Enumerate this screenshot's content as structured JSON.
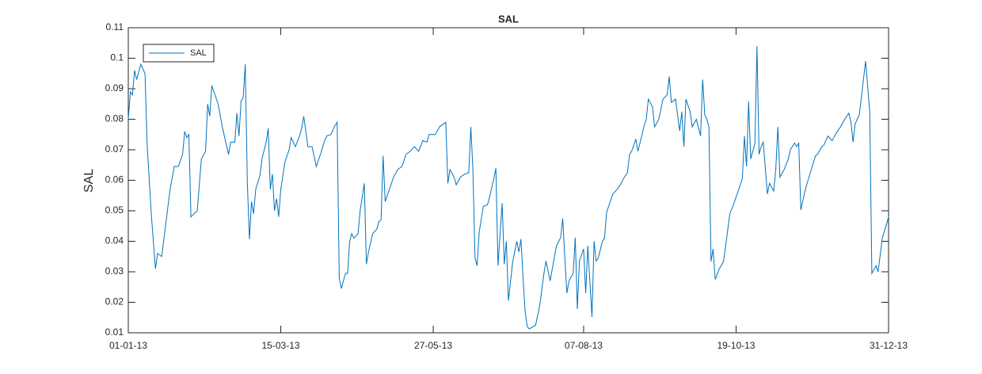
{
  "chart_data": {
    "type": "line",
    "title": "SAL",
    "y_label": "SAL",
    "x": [
      "01-01-13",
      "02-01-13",
      "03-01-13",
      "04-01-13",
      "05-01-13",
      "07-01-13",
      "09-01-13",
      "10-01-13",
      "12-01-13",
      "14-01-13",
      "15-01-13",
      "17-01-13",
      "19-01-13",
      "21-01-13",
      "23-01-13",
      "25-01-13",
      "27-01-13",
      "28-01-13",
      "29-01-13",
      "30-01-13",
      "31-01-13",
      "03-02-13",
      "05-02-13",
      "07-02-13",
      "08-02-13",
      "09-02-13",
      "10-02-13",
      "13-02-13",
      "15-02-13",
      "18-02-13",
      "19-02-13",
      "21-02-13",
      "22-02-13",
      "23-02-13",
      "24-02-13",
      "25-02-13",
      "26-02-13",
      "27-02-13",
      "28-02-13",
      "01-03-13",
      "02-03-13",
      "03-03-13",
      "05-03-13",
      "06-03-13",
      "08-03-13",
      "09-03-13",
      "10-03-13",
      "11-03-13",
      "12-03-13",
      "13-03-13",
      "14-03-13",
      "15-03-13",
      "17-03-13",
      "19-03-13",
      "20-03-13",
      "22-03-13",
      "24-03-13",
      "25-03-13",
      "26-03-13",
      "28-03-13",
      "30-03-13",
      "01-04-13",
      "03-04-13",
      "05-04-13",
      "06-04-13",
      "08-04-13",
      "10-04-13",
      "11-04-13",
      "12-04-13",
      "13-04-13",
      "15-04-13",
      "16-04-13",
      "17-04-13",
      "18-04-13",
      "19-04-13",
      "21-04-13",
      "22-04-13",
      "24-04-13",
      "25-04-13",
      "26-04-13",
      "28-04-13",
      "30-04-13",
      "01-05-13",
      "02-05-13",
      "03-05-13",
      "04-05-13",
      "06-05-13",
      "08-05-13",
      "10-05-13",
      "12-05-13",
      "14-05-13",
      "16-05-13",
      "18-05-13",
      "20-05-13",
      "22-05-13",
      "24-05-13",
      "25-05-13",
      "28-05-13",
      "30-05-13",
      "31-05-13",
      "02-06-13",
      "03-06-13",
      "04-06-13",
      "06-06-13",
      "07-06-13",
      "09-06-13",
      "11-06-13",
      "13-06-13",
      "14-06-13",
      "15-06-13",
      "16-06-13",
      "17-06-13",
      "18-06-13",
      "20-06-13",
      "22-06-13",
      "23-06-13",
      "25-06-13",
      "26-06-13",
      "27-06-13",
      "29-06-13",
      "30-06-13",
      "01-07-13",
      "02-07-13",
      "04-07-13",
      "06-07-13",
      "07-07-13",
      "08-07-13",
      "09-07-13",
      "10-07-13",
      "11-07-13",
      "12-07-13",
      "15-07-13",
      "17-07-13",
      "19-07-13",
      "20-07-13",
      "22-07-13",
      "23-07-13",
      "25-07-13",
      "27-07-13",
      "28-07-13",
      "29-07-13",
      "30-07-13",
      "31-07-13",
      "02-08-13",
      "03-08-13",
      "04-08-13",
      "05-08-13",
      "07-08-13",
      "08-08-13",
      "09-08-13",
      "11-08-13",
      "12-08-13",
      "13-08-13",
      "14-08-13",
      "16-08-13",
      "17-08-13",
      "18-08-13",
      "19-08-13",
      "21-08-13",
      "23-08-13",
      "25-08-13",
      "26-08-13",
      "28-08-13",
      "29-08-13",
      "30-08-13",
      "01-09-13",
      "02-09-13",
      "04-09-13",
      "05-09-13",
      "06-09-13",
      "07-09-13",
      "09-09-13",
      "10-09-13",
      "12-09-13",
      "14-09-13",
      "16-09-13",
      "17-09-13",
      "18-09-13",
      "20-09-13",
      "22-09-13",
      "23-09-13",
      "24-09-13",
      "25-09-13",
      "27-09-13",
      "28-09-13",
      "30-09-13",
      "02-10-13",
      "03-10-13",
      "04-10-13",
      "05-10-13",
      "06-10-13",
      "07-10-13",
      "08-10-13",
      "09-10-13",
      "11-10-13",
      "13-10-13",
      "14-10-13",
      "16-10-13",
      "18-10-13",
      "20-10-13",
      "22-10-13",
      "23-10-13",
      "24-10-13",
      "25-10-13",
      "26-10-13",
      "28-10-13",
      "29-10-13",
      "30-10-13",
      "31-10-13",
      "01-11-13",
      "03-11-13",
      "04-11-13",
      "06-11-13",
      "07-11-13",
      "08-11-13",
      "09-11-13",
      "11-11-13",
      "13-11-13",
      "14-11-13",
      "16-11-13",
      "17-11-13",
      "18-11-13",
      "19-11-13",
      "21-11-13",
      "22-11-13",
      "24-11-13",
      "26-11-13",
      "27-11-13",
      "29-11-13",
      "30-11-13",
      "02-12-13",
      "04-12-13",
      "06-12-13",
      "08-12-13",
      "10-12-13",
      "12-12-13",
      "13-12-13",
      "14-12-13",
      "15-12-13",
      "17-12-13",
      "20-12-13",
      "22-12-13",
      "23-12-13",
      "25-12-13",
      "26-12-13",
      "28-12-13",
      "30-12-13",
      "31-12-13"
    ],
    "series": [
      {
        "name": "SAL",
        "color": "#0072bd",
        "values": [
          0.08,
          0.089,
          0.088,
          0.096,
          0.093,
          0.098,
          0.095,
          0.072,
          0.049,
          0.031,
          0.036,
          0.035,
          0.046,
          0.057,
          0.0645,
          0.0645,
          0.0685,
          0.076,
          0.074,
          0.075,
          0.048,
          0.05,
          0.067,
          0.0695,
          0.085,
          0.081,
          0.091,
          0.085,
          0.0775,
          0.0685,
          0.0725,
          0.0725,
          0.082,
          0.0745,
          0.086,
          0.087,
          0.098,
          0.059,
          0.0407,
          0.053,
          0.049,
          0.057,
          0.0615,
          0.067,
          0.0725,
          0.077,
          0.057,
          0.062,
          0.05,
          0.054,
          0.048,
          0.057,
          0.066,
          0.07,
          0.074,
          0.071,
          0.0745,
          0.077,
          0.081,
          0.071,
          0.071,
          0.0645,
          0.0685,
          0.073,
          0.0745,
          0.075,
          0.078,
          0.079,
          0.028,
          0.0245,
          0.0295,
          0.0295,
          0.04,
          0.0425,
          0.041,
          0.0425,
          0.05,
          0.059,
          0.0325,
          0.0365,
          0.0425,
          0.044,
          0.0465,
          0.047,
          0.068,
          0.053,
          0.057,
          0.061,
          0.0635,
          0.0645,
          0.0685,
          0.0695,
          0.071,
          0.0695,
          0.073,
          0.0725,
          0.075,
          0.075,
          0.0775,
          0.078,
          0.079,
          0.059,
          0.0635,
          0.061,
          0.0585,
          0.061,
          0.062,
          0.0625,
          0.0775,
          0.0635,
          0.0345,
          0.032,
          0.043,
          0.0515,
          0.052,
          0.0545,
          0.0605,
          0.064,
          0.032,
          0.0525,
          0.0325,
          0.04,
          0.0205,
          0.033,
          0.04,
          0.0365,
          0.0407,
          0.028,
          0.017,
          0.012,
          0.0113,
          0.0125,
          0.019,
          0.0295,
          0.0335,
          0.027,
          0.031,
          0.0385,
          0.0412,
          0.0475,
          0.0345,
          0.023,
          0.027,
          0.0295,
          0.0412,
          0.0178,
          0.0335,
          0.0375,
          0.023,
          0.0385,
          0.0152,
          0.04,
          0.0335,
          0.0345,
          0.04,
          0.041,
          0.0495,
          0.0515,
          0.0555,
          0.057,
          0.059,
          0.0605,
          0.0625,
          0.0685,
          0.0695,
          0.0735,
          0.0695,
          0.075,
          0.078,
          0.08,
          0.0866,
          0.084,
          0.0775,
          0.08,
          0.0866,
          0.088,
          0.094,
          0.0855,
          0.0866,
          0.0762,
          0.0825,
          0.071,
          0.0866,
          0.0825,
          0.0775,
          0.08,
          0.0745,
          0.093,
          0.0815,
          0.08,
          0.0775,
          0.0334,
          0.0375,
          0.0275,
          0.031,
          0.0334,
          0.0385,
          0.049,
          0.0525,
          0.0565,
          0.0605,
          0.0745,
          0.0645,
          0.0858,
          0.067,
          0.072,
          0.104,
          0.0685,
          0.071,
          0.0725,
          0.0555,
          0.059,
          0.0565,
          0.0635,
          0.0775,
          0.061,
          0.0635,
          0.067,
          0.07,
          0.0722,
          0.071,
          0.0722,
          0.0503,
          0.0565,
          0.059,
          0.0635,
          0.068,
          0.0685,
          0.071,
          0.0715,
          0.0745,
          0.073,
          0.0755,
          0.0775,
          0.08,
          0.082,
          0.079,
          0.0725,
          0.0785,
          0.0815,
          0.099,
          0.0825,
          0.0295,
          0.032,
          0.03,
          0.041,
          0.0455,
          0.048
        ]
      }
    ],
    "xlim": [
      "01-01-13",
      "31-12-13"
    ],
    "xticks": [
      "01-01-13",
      "15-03-13",
      "27-05-13",
      "07-08-13",
      "19-10-13",
      "31-12-13"
    ],
    "ylim": [
      0.01,
      0.11
    ],
    "yticks": [
      0.01,
      0.02,
      0.03,
      0.04,
      0.05,
      0.06,
      0.07,
      0.08,
      0.09,
      0.1,
      0.11
    ],
    "legend": "upper left",
    "grid": false
  }
}
